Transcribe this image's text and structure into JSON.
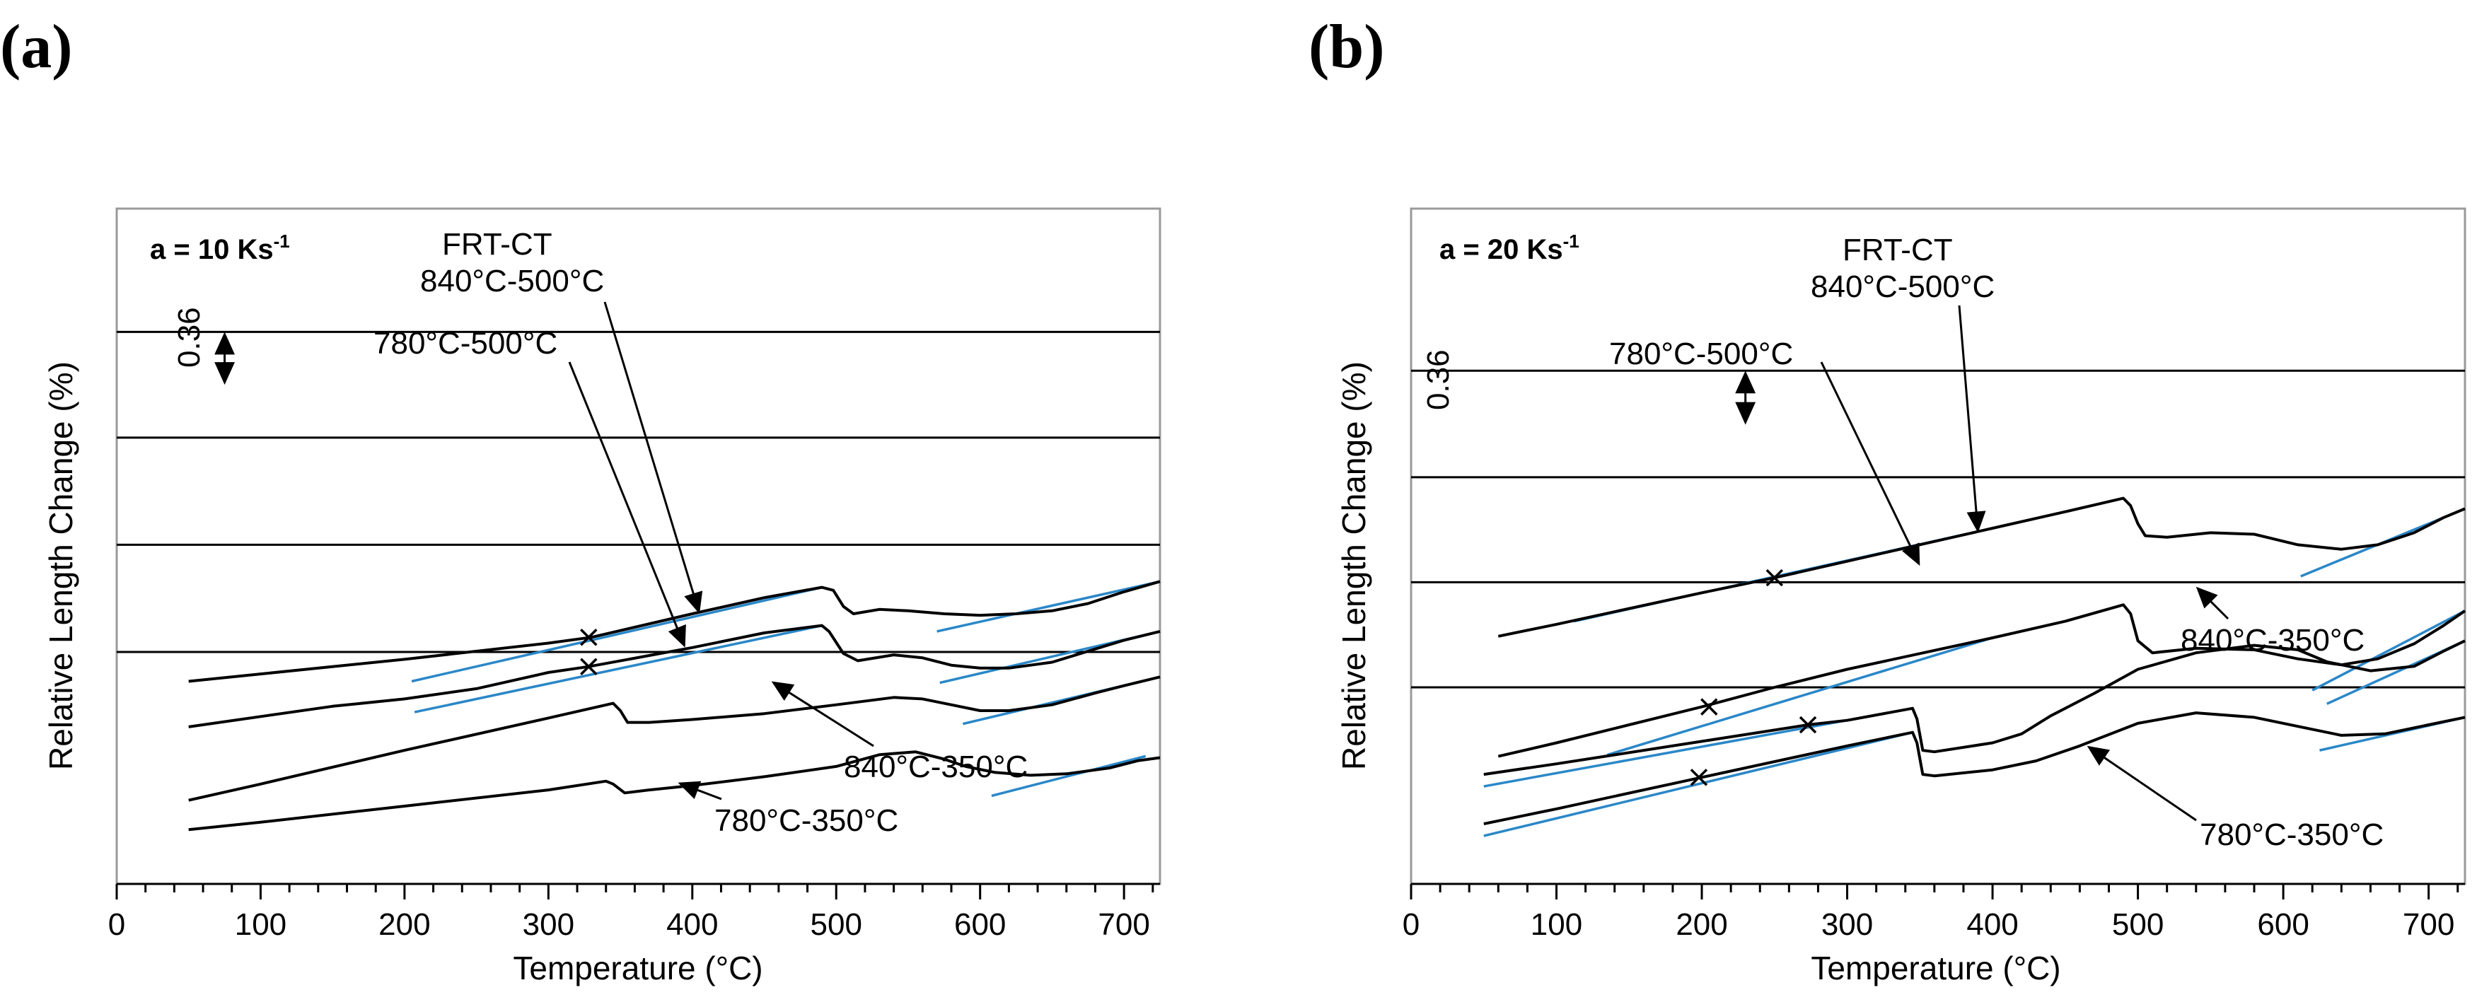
{
  "chart_data": [
    {
      "id": "a",
      "type": "line",
      "panel_label": "(a)",
      "rate": {
        "prefix": "a = 10 Ks",
        "sup": "-1"
      },
      "xlabel": "Temperature (°C)",
      "ylabel": "Relative Length Change  (%)",
      "xlim": [
        0,
        725
      ],
      "ylim": [
        0,
        4.6
      ],
      "xticks": [
        0,
        100,
        200,
        300,
        400,
        500,
        600,
        700
      ],
      "scale_bar": {
        "label": "0.36",
        "value": 0.36,
        "x": 75,
        "y_from": 3.4,
        "y_to": 3.76
      },
      "series": [
        {
          "name": "FRT-CT 840°C-500°C",
          "baseline": 3.76,
          "points": [
            [
              50,
              1.38
            ],
            [
              100,
              1.43
            ],
            [
              200,
              1.53
            ],
            [
              300,
              1.64
            ],
            [
              330,
              1.68
            ],
            [
              400,
              1.84
            ],
            [
              450,
              1.95
            ],
            [
              490,
              2.02
            ],
            [
              498,
              2.0
            ],
            [
              505,
              1.89
            ],
            [
              512,
              1.84
            ],
            [
              530,
              1.87
            ],
            [
              550,
              1.86
            ],
            [
              575,
              1.84
            ],
            [
              600,
              1.83
            ],
            [
              625,
              1.84
            ],
            [
              650,
              1.86
            ],
            [
              675,
              1.91
            ],
            [
              700,
              1.99
            ],
            [
              725,
              2.06
            ]
          ],
          "tangents": [
            [
              [
                205,
                1.38
              ],
              [
                490,
                2.02
              ]
            ],
            [
              [
                570,
                1.72
              ],
              [
                725,
                2.06
              ]
            ]
          ],
          "transition_mark": [
            328,
            1.68
          ]
        },
        {
          "name": "780°C-500°C",
          "baseline": 3.04,
          "points": [
            [
              50,
              1.07
            ],
            [
              100,
              1.14
            ],
            [
              150,
              1.21
            ],
            [
              200,
              1.26
            ],
            [
              250,
              1.33
            ],
            [
              300,
              1.44
            ],
            [
              328,
              1.48
            ],
            [
              400,
              1.61
            ],
            [
              450,
              1.71
            ],
            [
              490,
              1.76
            ],
            [
              495,
              1.72
            ],
            [
              505,
              1.57
            ],
            [
              515,
              1.52
            ],
            [
              540,
              1.56
            ],
            [
              560,
              1.54
            ],
            [
              580,
              1.49
            ],
            [
              600,
              1.47
            ],
            [
              620,
              1.47
            ],
            [
              650,
              1.51
            ],
            [
              680,
              1.6
            ],
            [
              700,
              1.66
            ],
            [
              725,
              1.72
            ]
          ],
          "tangents": [
            [
              [
                207,
                1.17
              ],
              [
                490,
                1.76
              ]
            ],
            [
              [
                572,
                1.37
              ],
              [
                725,
                1.72
              ]
            ]
          ],
          "transition_mark": [
            328,
            1.48
          ]
        },
        {
          "name": "840°C-350°C",
          "baseline": 2.31,
          "points": [
            [
              50,
              0.57
            ],
            [
              100,
              0.68
            ],
            [
              200,
              0.91
            ],
            [
              300,
              1.13
            ],
            [
              345,
              1.23
            ],
            [
              350,
              1.18
            ],
            [
              355,
              1.1
            ],
            [
              370,
              1.1
            ],
            [
              400,
              1.12
            ],
            [
              450,
              1.16
            ],
            [
              500,
              1.22
            ],
            [
              540,
              1.27
            ],
            [
              560,
              1.26
            ],
            [
              580,
              1.22
            ],
            [
              600,
              1.18
            ],
            [
              620,
              1.18
            ],
            [
              650,
              1.22
            ],
            [
              680,
              1.3
            ],
            [
              700,
              1.35
            ],
            [
              725,
              1.41
            ]
          ],
          "tangents": [
            [
              [
                588,
                1.09
              ],
              [
                725,
                1.41
              ]
            ]
          ]
        },
        {
          "name": "780°C-350°C",
          "baseline": 1.58,
          "points": [
            [
              50,
              0.37
            ],
            [
              100,
              0.42
            ],
            [
              200,
              0.53
            ],
            [
              300,
              0.64
            ],
            [
              340,
              0.7
            ],
            [
              345,
              0.68
            ],
            [
              353,
              0.62
            ],
            [
              370,
              0.64
            ],
            [
              400,
              0.67
            ],
            [
              450,
              0.73
            ],
            [
              500,
              0.8
            ],
            [
              530,
              0.88
            ],
            [
              555,
              0.9
            ],
            [
              575,
              0.85
            ],
            [
              590,
              0.8
            ],
            [
              610,
              0.76
            ],
            [
              635,
              0.74
            ],
            [
              660,
              0.75
            ],
            [
              690,
              0.79
            ],
            [
              710,
              0.84
            ],
            [
              725,
              0.86
            ]
          ],
          "tangents": [
            [
              [
                608,
                0.6
              ],
              [
                715,
                0.87
              ]
            ]
          ]
        }
      ],
      "annotations": [
        {
          "lines": [
            "FRT-CT",
            "840°C-500°C"
          ],
          "target": [
            405,
            1.84
          ]
        },
        {
          "lines": [
            "780°C-500°C"
          ],
          "target": [
            395,
            1.61
          ]
        },
        {
          "lines": [
            "840°C-350°C"
          ],
          "target": [
            455,
            1.38
          ]
        },
        {
          "lines": [
            "780°C-350°C"
          ],
          "target": [
            390,
            0.69
          ]
        }
      ]
    },
    {
      "id": "b",
      "type": "line",
      "panel_label": "(b)",
      "rate": {
        "prefix": "a = 20 Ks",
        "sup": "-1"
      },
      "xlabel": "Temperature (°C)",
      "ylabel": "Relative Length Change (%)",
      "xlim": [
        0,
        725
      ],
      "ylim": [
        0,
        4.5
      ],
      "xticks": [
        0,
        100,
        200,
        300,
        400,
        500,
        600,
        700
      ],
      "scale_bar": {
        "label": "0.36",
        "value": 0.36,
        "x": 230,
        "y_from": 3.06,
        "y_to": 3.42
      },
      "series": [
        {
          "name": "FRT-CT 840°C-500°C",
          "baseline": 3.42,
          "points": [
            [
              60,
              1.65
            ],
            [
              100,
              1.73
            ],
            [
              200,
              1.94
            ],
            [
              250,
              2.04
            ],
            [
              300,
              2.15
            ],
            [
              400,
              2.37
            ],
            [
              450,
              2.48
            ],
            [
              490,
              2.57
            ],
            [
              495,
              2.52
            ],
            [
              500,
              2.4
            ],
            [
              505,
              2.32
            ],
            [
              520,
              2.31
            ],
            [
              550,
              2.34
            ],
            [
              580,
              2.33
            ],
            [
              610,
              2.26
            ],
            [
              640,
              2.23
            ],
            [
              665,
              2.26
            ],
            [
              690,
              2.34
            ],
            [
              710,
              2.44
            ],
            [
              725,
              2.5
            ]
          ],
          "tangents": [
            [
              [
                112,
                1.75
              ],
              [
                400,
                2.37
              ]
            ],
            [
              [
                612,
                2.05
              ],
              [
                725,
                2.5
              ]
            ]
          ],
          "transition_mark": [
            250,
            2.04
          ]
        },
        {
          "name": "780°C-500°C",
          "baseline": 2.71,
          "points": [
            [
              60,
              0.85
            ],
            [
              100,
              0.94
            ],
            [
              150,
              1.06
            ],
            [
              200,
              1.18
            ],
            [
              250,
              1.31
            ],
            [
              300,
              1.43
            ],
            [
              400,
              1.64
            ],
            [
              450,
              1.75
            ],
            [
              490,
              1.86
            ],
            [
              495,
              1.8
            ],
            [
              500,
              1.62
            ],
            [
              510,
              1.54
            ],
            [
              540,
              1.57
            ],
            [
              580,
              1.56
            ],
            [
              610,
              1.5
            ],
            [
              640,
              1.46
            ],
            [
              665,
              1.5
            ],
            [
              690,
              1.6
            ],
            [
              710,
              1.72
            ],
            [
              725,
              1.82
            ]
          ],
          "tangents": [
            [
              [
                135,
                0.86
              ],
              [
                400,
                1.64
              ]
            ],
            [
              [
                620,
                1.29
              ],
              [
                725,
                1.82
              ]
            ]
          ],
          "transition_mark": [
            205,
            1.18
          ]
        },
        {
          "name": "840°C-350°C",
          "baseline": 2.01,
          "points": [
            [
              50,
              0.73
            ],
            [
              100,
              0.8
            ],
            [
              200,
              0.95
            ],
            [
              273,
              1.06
            ],
            [
              300,
              1.09
            ],
            [
              345,
              1.17
            ],
            [
              348,
              1.1
            ],
            [
              352,
              0.89
            ],
            [
              360,
              0.88
            ],
            [
              400,
              0.94
            ],
            [
              420,
              1.0
            ],
            [
              440,
              1.12
            ],
            [
              470,
              1.27
            ],
            [
              500,
              1.43
            ],
            [
              540,
              1.54
            ],
            [
              580,
              1.59
            ],
            [
              610,
              1.56
            ],
            [
              630,
              1.48
            ],
            [
              660,
              1.42
            ],
            [
              690,
              1.45
            ],
            [
              710,
              1.55
            ],
            [
              725,
              1.62
            ]
          ],
          "tangents": [
            [
              [
                50,
                0.65
              ],
              [
                345,
                1.17
              ]
            ],
            [
              [
                630,
                1.2
              ],
              [
                725,
                1.62
              ]
            ]
          ],
          "transition_mark": [
            273,
            1.06
          ]
        },
        {
          "name": "780°C-350°C",
          "baseline": 1.31,
          "points": [
            [
              50,
              0.4
            ],
            [
              100,
              0.5
            ],
            [
              200,
              0.71
            ],
            [
              300,
              0.92
            ],
            [
              345,
              1.01
            ],
            [
              348,
              0.94
            ],
            [
              352,
              0.73
            ],
            [
              360,
              0.72
            ],
            [
              400,
              0.76
            ],
            [
              430,
              0.82
            ],
            [
              460,
              0.92
            ],
            [
              500,
              1.07
            ],
            [
              540,
              1.14
            ],
            [
              580,
              1.11
            ],
            [
              610,
              1.05
            ],
            [
              640,
              0.99
            ],
            [
              670,
              1.0
            ],
            [
              700,
              1.06
            ],
            [
              725,
              1.11
            ]
          ],
          "tangents": [
            [
              [
                50,
                0.32
              ],
              [
                345,
                1.01
              ]
            ],
            [
              [
                625,
                0.89
              ],
              [
                725,
                1.11
              ]
            ]
          ],
          "transition_mark": [
            198,
            0.71
          ]
        }
      ],
      "annotations": [
        {
          "lines": [
            "FRT-CT",
            "840°C-500°C"
          ],
          "target": [
            390,
            2.34
          ]
        },
        {
          "lines": [
            "780°C-500°C"
          ],
          "target": [
            350,
            2.12
          ]
        },
        {
          "lines": [
            "840°C-350°C"
          ],
          "target": [
            540,
            1.98
          ]
        },
        {
          "lines": [
            "780°C-350°C"
          ],
          "target": [
            465,
            0.92
          ]
        }
      ]
    }
  ]
}
